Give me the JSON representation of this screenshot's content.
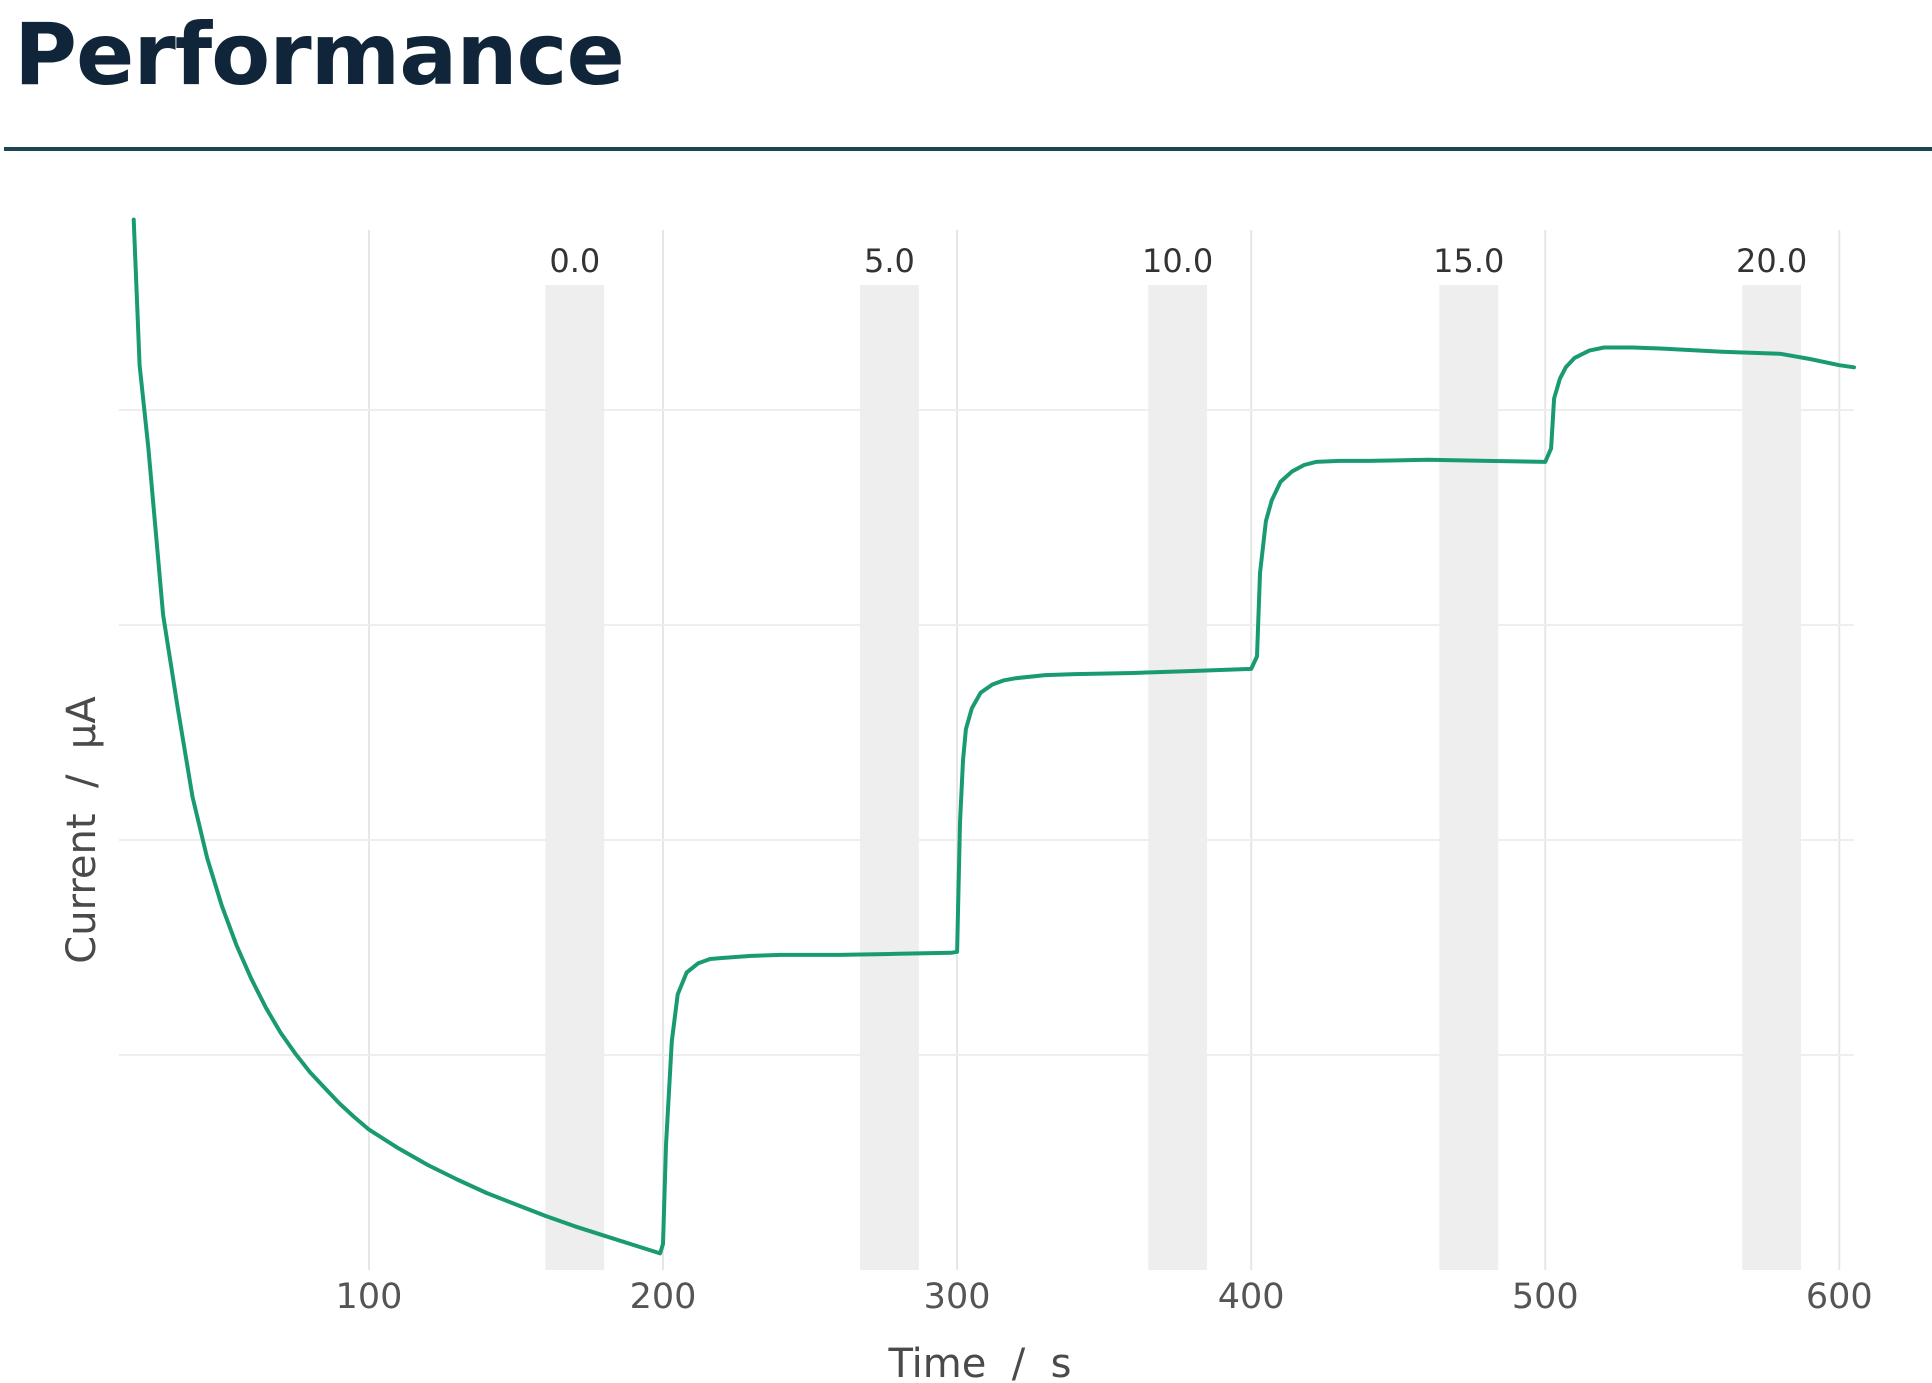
{
  "page": {
    "title": "Performance"
  },
  "chart_data": {
    "type": "line",
    "title": "",
    "xlabel": "Time  /  s",
    "ylabel": "Current  /  μA",
    "xlim": [
      15,
      605
    ],
    "ylim": [
      0,
      10
    ],
    "x_ticks": [
      100,
      200,
      300,
      400,
      500,
      600
    ],
    "y_ticks_shown": false,
    "grid": true,
    "line_color": "#1a9a73",
    "band_color": "#eeeeee",
    "bands": [
      {
        "label": "0.0",
        "x_start": 160,
        "x_end": 180
      },
      {
        "label": "5.0",
        "x_start": 267,
        "x_end": 287
      },
      {
        "label": "10.0",
        "x_start": 365,
        "x_end": 385
      },
      {
        "label": "15.0",
        "x_start": 464,
        "x_end": 484
      },
      {
        "label": "20.0",
        "x_start": 567,
        "x_end": 587
      }
    ],
    "series": [
      {
        "x": [
          20,
          22,
          25,
          30,
          35,
          40,
          45,
          50,
          55,
          60,
          65,
          70,
          75,
          80,
          85,
          90,
          95,
          100,
          110,
          120,
          130,
          140,
          150,
          160,
          170,
          180,
          190,
          199,
          200,
          201,
          203,
          205,
          208,
          212,
          216,
          220,
          230,
          240,
          260,
          280,
          298,
          300,
          301,
          302,
          303,
          305,
          308,
          312,
          316,
          320,
          330,
          340,
          360,
          380,
          400,
          402,
          403,
          405,
          407,
          410,
          414,
          418,
          422,
          430,
          440,
          460,
          480,
          500,
          502,
          503,
          505,
          507,
          510,
          515,
          520,
          530,
          540,
          560,
          580,
          590,
          600,
          605
        ],
        "values": [
          10.1,
          8.7,
          7.9,
          6.3,
          5.4,
          4.55,
          3.96,
          3.5,
          3.12,
          2.8,
          2.52,
          2.28,
          2.08,
          1.9,
          1.75,
          1.6,
          1.47,
          1.35,
          1.17,
          1.01,
          0.87,
          0.74,
          0.63,
          0.52,
          0.42,
          0.33,
          0.24,
          0.16,
          0.25,
          1.2,
          2.2,
          2.65,
          2.86,
          2.95,
          2.99,
          3.0,
          3.02,
          3.03,
          3.03,
          3.04,
          3.05,
          3.06,
          4.3,
          4.9,
          5.2,
          5.4,
          5.55,
          5.63,
          5.67,
          5.69,
          5.72,
          5.73,
          5.74,
          5.76,
          5.78,
          5.9,
          6.7,
          7.2,
          7.4,
          7.58,
          7.68,
          7.74,
          7.77,
          7.78,
          7.78,
          7.79,
          7.78,
          7.77,
          7.9,
          8.38,
          8.57,
          8.68,
          8.77,
          8.84,
          8.87,
          8.87,
          8.86,
          8.83,
          8.81,
          8.76,
          8.7,
          8.68
        ]
      }
    ]
  }
}
